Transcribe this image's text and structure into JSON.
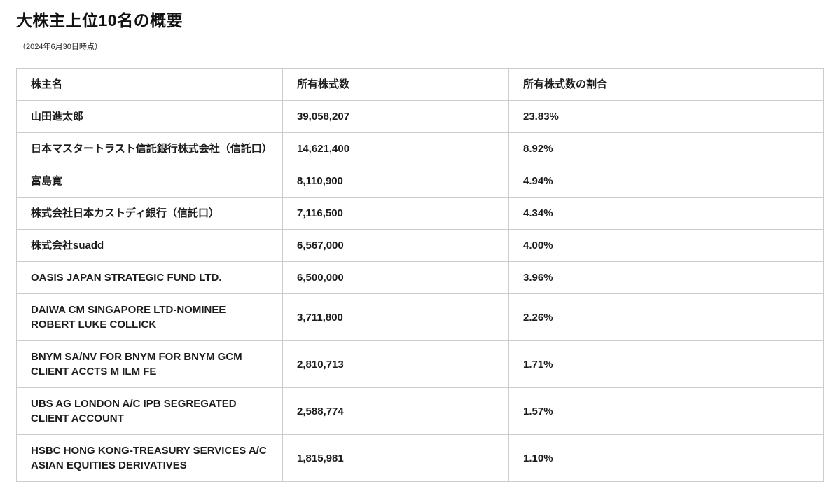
{
  "page": {
    "title": "大株主上位10名の概要",
    "subtitle": "（2024年6月30日時点）"
  },
  "colors": {
    "background": "#ffffff",
    "table_border": "#cccccc",
    "text": "#1c1c1c"
  },
  "table": {
    "headers": [
      "株主名",
      "所有株式数",
      "所有株式数の割合"
    ],
    "rows": [
      {
        "name": "山田進太郎",
        "shares": "39,058,207",
        "ratio": "23.83%"
      },
      {
        "name": "日本マスタートラスト信託銀行株式会社（信託口）",
        "shares": "14,621,400",
        "ratio": "8.92%"
      },
      {
        "name": "富島寛",
        "shares": "8,110,900",
        "ratio": "4.94%"
      },
      {
        "name": "株式会社日本カストディ銀行（信託口）",
        "shares": "7,116,500",
        "ratio": "4.34%"
      },
      {
        "name": "株式会社suadd",
        "shares": "6,567,000",
        "ratio": "4.00%"
      },
      {
        "name": "OASIS JAPAN STRATEGIC FUND LTD.",
        "shares": "6,500,000",
        "ratio": "3.96%"
      },
      {
        "name": "DAIWA CM SINGAPORE LTD-NOMINEE ROBERT LUKE COLLICK",
        "shares": "3,711,800",
        "ratio": "2.26%"
      },
      {
        "name": "BNYM SA/NV FOR BNYM FOR BNYM GCM CLIENT ACCTS M ILM FE",
        "shares": "2,810,713",
        "ratio": "1.71%"
      },
      {
        "name": "UBS AG LONDON A/C IPB SEGREGATED CLIENT ACCOUNT",
        "shares": "2,588,774",
        "ratio": "1.57%"
      },
      {
        "name": "HSBC HONG KONG-TREASURY SERVICES A/C ASIAN EQUITIES DERIVATIVES",
        "shares": "1,815,981",
        "ratio": "1.10%"
      }
    ]
  }
}
